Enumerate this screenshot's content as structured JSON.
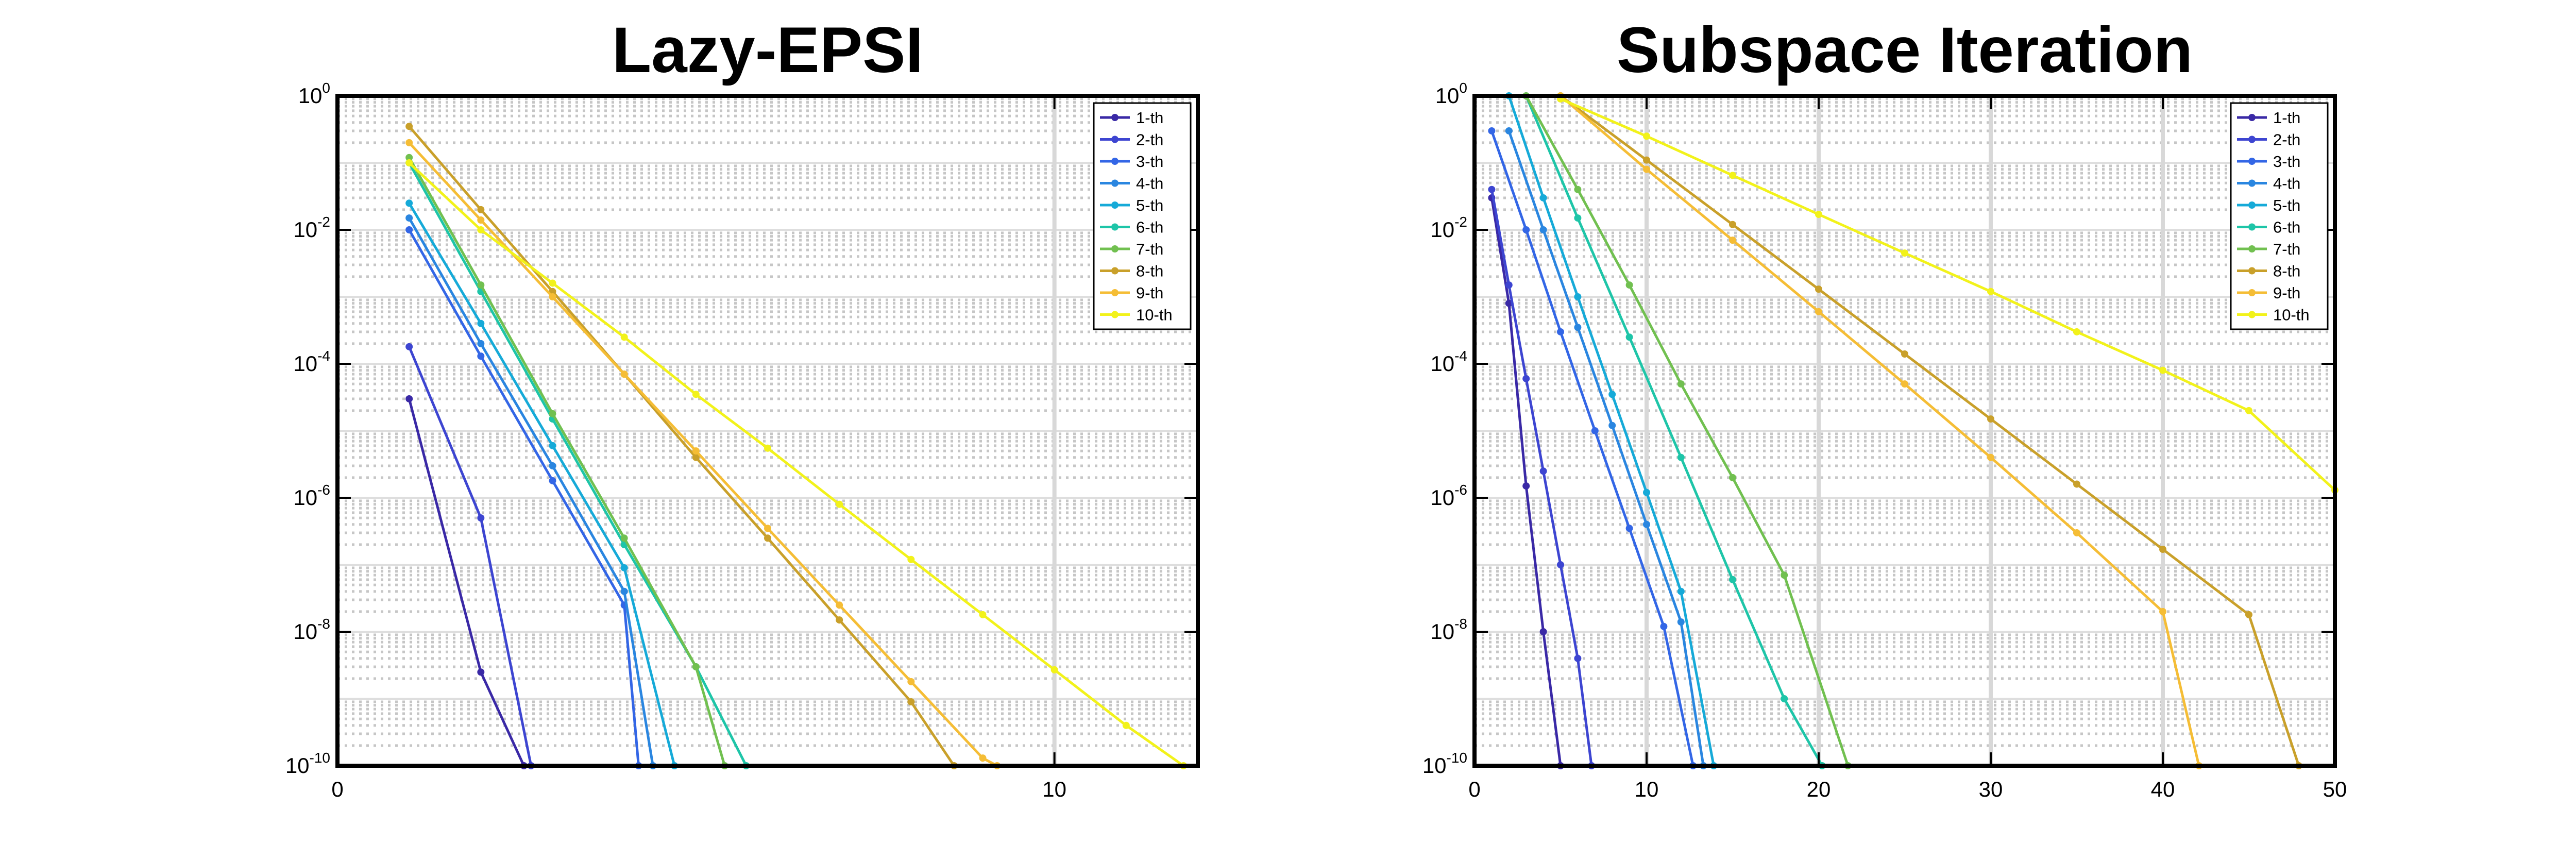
{
  "chart_data": [
    {
      "type": "line",
      "title": "Lazy-EPSI",
      "xlabel": "",
      "ylabel": "",
      "yscale": "log",
      "xlim": [
        0,
        12
      ],
      "ylim": [
        1e-10,
        1
      ],
      "xticks": [
        {
          "value": 0,
          "label": "0"
        },
        {
          "value": 10,
          "label": "10"
        }
      ],
      "yticks": [
        {
          "value": 1,
          "base": "10",
          "exp": "0"
        },
        {
          "value": 0.01,
          "base": "10",
          "exp": "-2"
        },
        {
          "value": 0.0001,
          "base": "10",
          "exp": "-4"
        },
        {
          "value": 1e-06,
          "base": "10",
          "exp": "-6"
        },
        {
          "value": 1e-08,
          "base": "10",
          "exp": "-8"
        },
        {
          "value": 1e-10,
          "base": "10",
          "exp": "-10"
        }
      ],
      "grid": true,
      "legend_position": "top-right",
      "series": [
        {
          "name": "1-th",
          "color": "#3a29a6",
          "x": [
            1,
            2,
            2.6
          ],
          "y": [
            3e-05,
            2.5e-09,
            1e-10
          ]
        },
        {
          "name": "2-th",
          "color": "#3d45d1",
          "x": [
            1,
            2,
            2.7
          ],
          "y": [
            0.00018,
            5e-07,
            1e-10
          ]
        },
        {
          "name": "3-th",
          "color": "#3366e6",
          "x": [
            1,
            2,
            3,
            4,
            4.2
          ],
          "y": [
            0.01,
            0.00013,
            1.8e-06,
            2.5e-08,
            1e-10
          ]
        },
        {
          "name": "4-th",
          "color": "#2a86e0",
          "x": [
            1,
            2,
            3,
            4,
            4.4
          ],
          "y": [
            0.015,
            0.0002,
            3e-06,
            4e-08,
            1e-10
          ]
        },
        {
          "name": "5-th",
          "color": "#16aad8",
          "x": [
            1,
            2,
            3,
            4,
            4.7
          ],
          "y": [
            0.025,
            0.0004,
            6e-06,
            9e-08,
            1e-10
          ]
        },
        {
          "name": "6-th",
          "color": "#1ec5a8",
          "x": [
            1,
            2,
            3,
            4,
            5,
            5.7
          ],
          "y": [
            0.1,
            0.0012,
            1.5e-05,
            2e-07,
            3e-09,
            1e-10
          ]
        },
        {
          "name": "7-th",
          "color": "#71c050",
          "x": [
            1,
            2,
            3,
            4,
            5,
            5.4
          ],
          "y": [
            0.12,
            0.0015,
            1.8e-05,
            2.5e-07,
            3e-09,
            1e-10
          ]
        },
        {
          "name": "8-th",
          "color": "#c9a02a",
          "x": [
            1,
            2,
            3,
            4,
            5,
            6,
            7,
            8,
            8.6
          ],
          "y": [
            0.35,
            0.02,
            0.0012,
            7e-05,
            4e-06,
            2.5e-07,
            1.5e-08,
            9e-10,
            1e-10
          ]
        },
        {
          "name": "9-th",
          "color": "#f5bd35",
          "x": [
            1,
            2,
            3,
            4,
            5,
            6,
            7,
            8,
            9,
            9.2
          ],
          "y": [
            0.2,
            0.014,
            0.001,
            7e-05,
            5e-06,
            3.5e-07,
            2.5e-08,
            1.8e-09,
            1.3e-10,
            1e-10
          ]
        },
        {
          "name": "10-th",
          "color": "#f2f21a",
          "x": [
            1,
            2,
            3,
            4,
            5,
            6,
            7,
            8,
            9,
            10,
            11,
            11.8
          ],
          "y": [
            0.1,
            0.01,
            0.0016,
            0.00025,
            3.5e-05,
            5.5e-06,
            8e-07,
            1.2e-07,
            1.8e-08,
            2.7e-09,
            4e-10,
            1e-10
          ]
        }
      ]
    },
    {
      "type": "line",
      "title": "Subspace Iteration",
      "xlabel": "",
      "ylabel": "",
      "yscale": "log",
      "xlim": [
        0,
        50
      ],
      "ylim": [
        1e-10,
        1
      ],
      "xticks": [
        {
          "value": 0,
          "label": "0"
        },
        {
          "value": 10,
          "label": "10"
        },
        {
          "value": 20,
          "label": "20"
        },
        {
          "value": 30,
          "label": "30"
        },
        {
          "value": 40,
          "label": "40"
        },
        {
          "value": 50,
          "label": "50"
        }
      ],
      "yticks": [
        {
          "value": 1,
          "base": "10",
          "exp": "0"
        },
        {
          "value": 0.01,
          "base": "10",
          "exp": "-2"
        },
        {
          "value": 0.0001,
          "base": "10",
          "exp": "-4"
        },
        {
          "value": 1e-06,
          "base": "10",
          "exp": "-6"
        },
        {
          "value": 1e-08,
          "base": "10",
          "exp": "-8"
        },
        {
          "value": 1e-10,
          "base": "10",
          "exp": "-10"
        }
      ],
      "grid": true,
      "legend_position": "top-right",
      "series": [
        {
          "name": "1-th",
          "color": "#3a29a6",
          "x": [
            1,
            2,
            3,
            4,
            5
          ],
          "y": [
            0.03,
            0.0008,
            1.5e-06,
            1e-08,
            1e-10
          ]
        },
        {
          "name": "2-th",
          "color": "#3d45d1",
          "x": [
            1,
            2,
            3,
            4,
            5,
            6,
            6.8
          ],
          "y": [
            0.04,
            0.0015,
            6e-05,
            2.5e-06,
            1e-07,
            4e-09,
            1e-10
          ]
        },
        {
          "name": "3-th",
          "color": "#3366e6",
          "x": [
            1,
            3,
            5,
            7,
            9,
            11,
            12.7
          ],
          "y": [
            0.3,
            0.01,
            0.0003,
            1e-05,
            3.5e-07,
            1.2e-08,
            1e-10
          ]
        },
        {
          "name": "4-th",
          "color": "#2a86e0",
          "x": [
            2,
            4,
            6,
            8,
            10,
            12,
            13.3
          ],
          "y": [
            0.3,
            0.01,
            0.00035,
            1.2e-05,
            4e-07,
            1.4e-08,
            1e-10
          ]
        },
        {
          "name": "5-th",
          "color": "#16aad8",
          "x": [
            2,
            4,
            6,
            8,
            10,
            12,
            13.9
          ],
          "y": [
            1,
            0.03,
            0.001,
            3.5e-05,
            1.2e-06,
            4e-08,
            1e-10
          ]
        },
        {
          "name": "6-th",
          "color": "#1ec5a8",
          "x": [
            3,
            6,
            9,
            12,
            15,
            18,
            20.2
          ],
          "y": [
            1,
            0.015,
            0.00025,
            4e-06,
            6e-08,
            1e-09,
            1e-10
          ]
        },
        {
          "name": "7-th",
          "color": "#71c050",
          "x": [
            3,
            6,
            9,
            12,
            15,
            18,
            21.7
          ],
          "y": [
            1,
            0.04,
            0.0015,
            5e-05,
            2e-06,
            7e-08,
            1e-10
          ]
        },
        {
          "name": "8-th",
          "color": "#c9a02a",
          "x": [
            5,
            10,
            15,
            20,
            25,
            30,
            35,
            40,
            45,
            47.9
          ],
          "y": [
            1,
            0.11,
            0.012,
            0.0013,
            0.00014,
            1.5e-05,
            1.6e-06,
            1.7e-07,
            1.8e-08,
            1e-10
          ]
        },
        {
          "name": "9-th",
          "color": "#f5bd35",
          "x": [
            5,
            10,
            15,
            20,
            25,
            30,
            35,
            40,
            42.1
          ],
          "y": [
            1,
            0.08,
            0.007,
            0.0006,
            5e-05,
            4e-06,
            3e-07,
            2e-08,
            1e-10
          ]
        },
        {
          "name": "10-th",
          "color": "#f2f21a",
          "x": [
            5,
            10,
            15,
            20,
            25,
            30,
            35,
            40,
            45,
            50
          ],
          "y": [
            0.9,
            0.25,
            0.065,
            0.017,
            0.0045,
            0.0012,
            0.0003,
            8e-05,
            2e-05,
            1.3e-06
          ]
        }
      ]
    }
  ]
}
